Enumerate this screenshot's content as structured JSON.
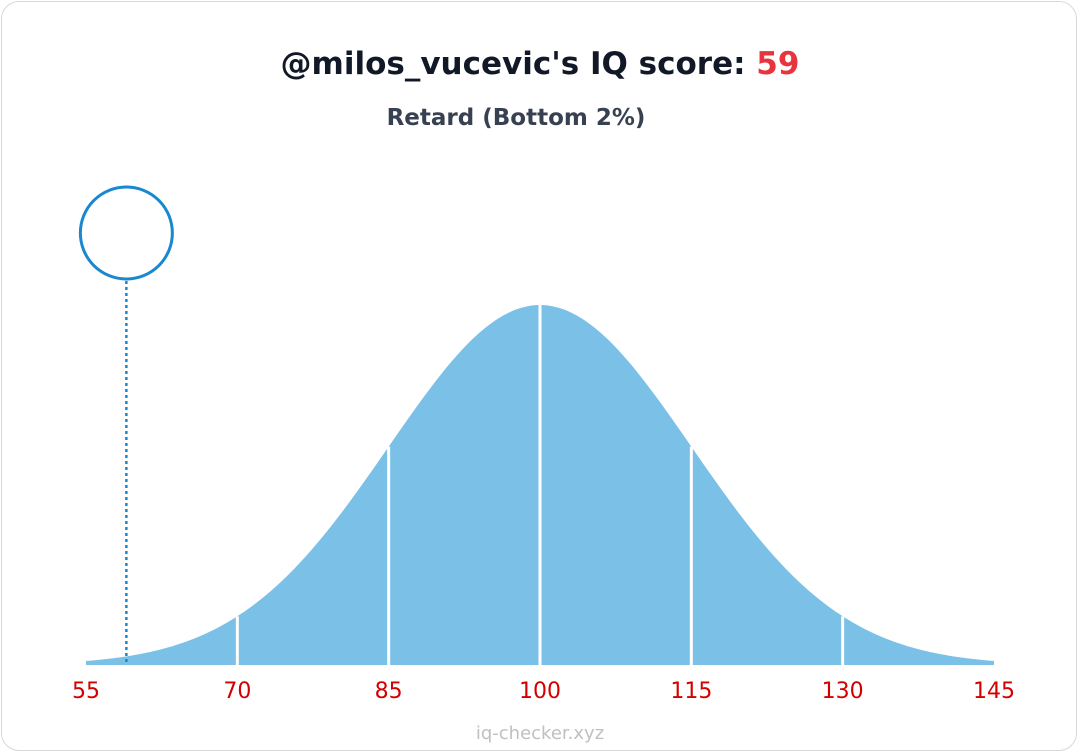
{
  "chart_data": {
    "type": "bell",
    "title": "@milos_vucevic's IQ score:",
    "score": 59,
    "subtitle": "Retard (Bottom 2%)",
    "footer": "iq-checker.xyz",
    "xlim": [
      55,
      145
    ],
    "xticks": [
      55,
      70,
      85,
      100,
      115,
      130,
      145
    ],
    "color": "#7bc0e6",
    "marker_color": "#1a88d0"
  }
}
